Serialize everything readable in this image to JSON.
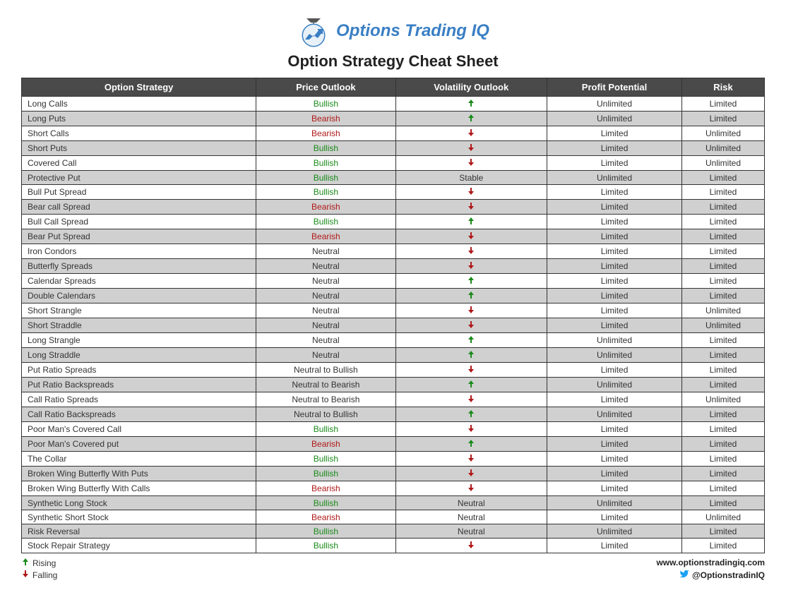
{
  "logo_text": "Options Trading IQ",
  "title": "Option Strategy Cheat Sheet",
  "columns": [
    "Option Strategy",
    "Price Outlook",
    "Volatility Outlook",
    "Profit Potential",
    "Risk"
  ],
  "colors": {
    "header_bg": "#4a4a4a",
    "header_text": "#ffffff",
    "row_odd_bg": "#ffffff",
    "row_even_bg": "#d0d0d0",
    "border": "#333333",
    "bullish": "#1a8a1a",
    "bearish": "#b01818",
    "neutral": "#333333",
    "arrow_up": "#1a8a1a",
    "arrow_down": "#b01818",
    "logo_text_color": "#3a7fc4",
    "twitter_blue": "#1da1f2"
  },
  "rows": [
    {
      "strategy": "Long Calls",
      "outlook": "Bullish",
      "outlook_class": "bullish",
      "vol": "up",
      "profit": "Unlimited",
      "risk": "Limited"
    },
    {
      "strategy": "Long Puts",
      "outlook": "Bearish",
      "outlook_class": "bearish",
      "vol": "up",
      "profit": "Unlimited",
      "risk": "Limited"
    },
    {
      "strategy": "Short Calls",
      "outlook": "Bearish",
      "outlook_class": "bearish",
      "vol": "down",
      "profit": "Limited",
      "risk": "Unlimited"
    },
    {
      "strategy": "Short Puts",
      "outlook": "Bullish",
      "outlook_class": "bullish",
      "vol": "down",
      "profit": "Limited",
      "risk": "Unlimited"
    },
    {
      "strategy": "Covered Call",
      "outlook": "Bullish",
      "outlook_class": "bullish",
      "vol": "down",
      "profit": "Limited",
      "risk": "Unlimited"
    },
    {
      "strategy": "Protective Put",
      "outlook": "Bullish",
      "outlook_class": "bullish",
      "vol": "Stable",
      "profit": "Unlimited",
      "risk": "Limited"
    },
    {
      "strategy": "Bull Put Spread",
      "outlook": "Bullish",
      "outlook_class": "bullish",
      "vol": "down",
      "profit": "Limited",
      "risk": "Limited"
    },
    {
      "strategy": "Bear call Spread",
      "outlook": "Bearish",
      "outlook_class": "bearish",
      "vol": "down",
      "profit": "Limited",
      "risk": "Limited"
    },
    {
      "strategy": "Bull Call Spread",
      "outlook": "Bullish",
      "outlook_class": "bullish",
      "vol": "up",
      "profit": "Limited",
      "risk": "Limited"
    },
    {
      "strategy": "Bear Put Spread",
      "outlook": "Bearish",
      "outlook_class": "bearish",
      "vol": "down",
      "profit": "Limited",
      "risk": "Limited"
    },
    {
      "strategy": "Iron Condors",
      "outlook": "Neutral",
      "outlook_class": "neutral",
      "vol": "down",
      "profit": "Limited",
      "risk": "Limited"
    },
    {
      "strategy": "Butterfly Spreads",
      "outlook": "Neutral",
      "outlook_class": "neutral",
      "vol": "down",
      "profit": "Limited",
      "risk": "Limited"
    },
    {
      "strategy": "Calendar Spreads",
      "outlook": "Neutral",
      "outlook_class": "neutral",
      "vol": "up",
      "profit": "Limited",
      "risk": "Limited"
    },
    {
      "strategy": "Double Calendars",
      "outlook": "Neutral",
      "outlook_class": "neutral",
      "vol": "up",
      "profit": "Limited",
      "risk": "Limited"
    },
    {
      "strategy": "Short Strangle",
      "outlook": "Neutral",
      "outlook_class": "neutral",
      "vol": "down",
      "profit": "Limited",
      "risk": "Unlimited"
    },
    {
      "strategy": "Short Straddle",
      "outlook": "Neutral",
      "outlook_class": "neutral",
      "vol": "down",
      "profit": "Limited",
      "risk": "Unlimited"
    },
    {
      "strategy": "Long Strangle",
      "outlook": "Neutral",
      "outlook_class": "neutral",
      "vol": "up",
      "profit": "Unlimited",
      "risk": "Limited"
    },
    {
      "strategy": "Long Straddle",
      "outlook": "Neutral",
      "outlook_class": "neutral",
      "vol": "up",
      "profit": "Unlimited",
      "risk": "Limited"
    },
    {
      "strategy": "Put Ratio Spreads",
      "outlook": "Neutral to Bullish",
      "outlook_class": "neutral",
      "vol": "down",
      "profit": "Limited",
      "risk": "Limited"
    },
    {
      "strategy": "Put Ratio Backspreads",
      "outlook": "Neutral to Bearish",
      "outlook_class": "neutral",
      "vol": "up",
      "profit": "Unlimited",
      "risk": "Limited"
    },
    {
      "strategy": "Call Ratio Spreads",
      "outlook": "Neutral to Bearish",
      "outlook_class": "neutral",
      "vol": "down",
      "profit": "Limited",
      "risk": "Unlimited"
    },
    {
      "strategy": "Call Ratio Backspreads",
      "outlook": "Neutral to Bullish",
      "outlook_class": "neutral",
      "vol": "up",
      "profit": "Unlimited",
      "risk": "Limited"
    },
    {
      "strategy": "Poor Man's Covered Call",
      "outlook": "Bullish",
      "outlook_class": "bullish",
      "vol": "down",
      "profit": "Limited",
      "risk": "Limited"
    },
    {
      "strategy": "Poor Man's Covered put",
      "outlook": "Bearish",
      "outlook_class": "bearish",
      "vol": "up",
      "profit": "Limited",
      "risk": "Limited"
    },
    {
      "strategy": "The Collar",
      "outlook": "Bullish",
      "outlook_class": "bullish",
      "vol": "down",
      "profit": "Limited",
      "risk": "Limited"
    },
    {
      "strategy": "Broken Wing Butterfly With Puts",
      "outlook": "Bullish",
      "outlook_class": "bullish",
      "vol": "down",
      "profit": "Limited",
      "risk": "Limited"
    },
    {
      "strategy": "Broken Wing Butterfly With Calls",
      "outlook": "Bearish",
      "outlook_class": "bearish",
      "vol": "down",
      "profit": "Limited",
      "risk": "Limited"
    },
    {
      "strategy": "Synthetic Long Stock",
      "outlook": "Bullish",
      "outlook_class": "bullish",
      "vol": "Neutral",
      "profit": "Unlimited",
      "risk": "Limited"
    },
    {
      "strategy": "Synthetic Short Stock",
      "outlook": "Bearish",
      "outlook_class": "bearish",
      "vol": "Neutral",
      "profit": "Limited",
      "risk": "Unlimited"
    },
    {
      "strategy": "Risk Reversal",
      "outlook": "Bullish",
      "outlook_class": "bullish",
      "vol": "Neutral",
      "profit": "Unlimited",
      "risk": "Limited"
    },
    {
      "strategy": "Stock Repair Strategy",
      "outlook": "Bullish",
      "outlook_class": "bullish",
      "vol": "down",
      "profit": "Limited",
      "risk": "Limited"
    }
  ],
  "legend": {
    "rising": "Rising",
    "falling": "Falling"
  },
  "footer": {
    "url": "www.optionstradingiq.com",
    "handle": "@OptionstradinIQ"
  }
}
